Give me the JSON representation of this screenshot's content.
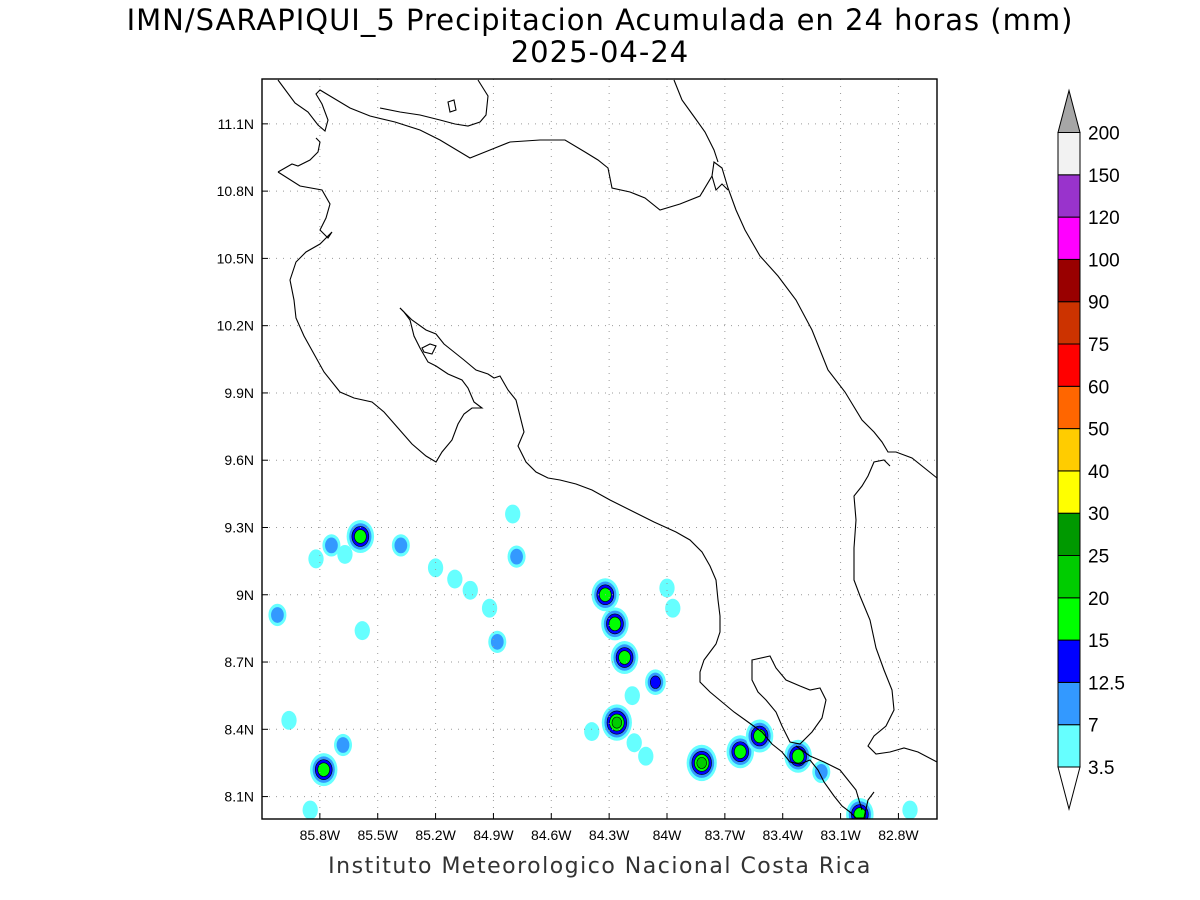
{
  "header": {
    "title_line1": "IMN/SARAPIQUI_5 Precipitacion Acumulada en 24 horas (mm)",
    "title_line2": "2025-04-24"
  },
  "footer": {
    "credit": "Instituto Meteorologico Nacional Costa Rica"
  },
  "map": {
    "lon_range": [
      -86.1,
      -82.6
    ],
    "lat_range": [
      8.0,
      11.3
    ],
    "x_ticks": [
      {
        "lon": -85.8,
        "label": "85.8W"
      },
      {
        "lon": -85.5,
        "label": "85.5W"
      },
      {
        "lon": -85.2,
        "label": "85.2W"
      },
      {
        "lon": -84.9,
        "label": "84.9W"
      },
      {
        "lon": -84.6,
        "label": "84.6W"
      },
      {
        "lon": -84.3,
        "label": "84.3W"
      },
      {
        "lon": -84.0,
        "label": "84W"
      },
      {
        "lon": -83.7,
        "label": "83.7W"
      },
      {
        "lon": -83.4,
        "label": "83.4W"
      },
      {
        "lon": -83.1,
        "label": "83.1W"
      },
      {
        "lon": -82.8,
        "label": "82.8W"
      }
    ],
    "y_ticks": [
      {
        "lat": 8.1,
        "label": "8.1N"
      },
      {
        "lat": 8.4,
        "label": "8.4N"
      },
      {
        "lat": 8.7,
        "label": "8.7N"
      },
      {
        "lat": 9.0,
        "label": "9N"
      },
      {
        "lat": 9.3,
        "label": "9.3N"
      },
      {
        "lat": 9.6,
        "label": "9.6N"
      },
      {
        "lat": 9.9,
        "label": "9.9N"
      },
      {
        "lat": 10.2,
        "label": "10.2N"
      },
      {
        "lat": 10.5,
        "label": "10.5N"
      },
      {
        "lat": 10.8,
        "label": "10.8N"
      },
      {
        "lat": 11.1,
        "label": "11.1N"
      }
    ],
    "grid": true,
    "coastline_color": "#000000",
    "precip_cells": [
      {
        "lon": -85.59,
        "lat": 9.26,
        "level": 4
      },
      {
        "lon": -85.74,
        "lat": 9.22,
        "level": 2
      },
      {
        "lon": -85.67,
        "lat": 9.18,
        "level": 1
      },
      {
        "lon": -85.82,
        "lat": 9.16,
        "level": 1
      },
      {
        "lon": -85.38,
        "lat": 9.22,
        "level": 2
      },
      {
        "lon": -85.2,
        "lat": 9.12,
        "level": 1
      },
      {
        "lon": -85.1,
        "lat": 9.07,
        "level": 1
      },
      {
        "lon": -85.02,
        "lat": 9.02,
        "level": 1
      },
      {
        "lon": -84.92,
        "lat": 8.94,
        "level": 1
      },
      {
        "lon": -84.8,
        "lat": 9.36,
        "level": 1
      },
      {
        "lon": -84.78,
        "lat": 9.17,
        "level": 2
      },
      {
        "lon": -84.88,
        "lat": 8.79,
        "level": 2
      },
      {
        "lon": -85.58,
        "lat": 8.84,
        "level": 1
      },
      {
        "lon": -86.02,
        "lat": 8.91,
        "level": 2
      },
      {
        "lon": -85.96,
        "lat": 8.44,
        "level": 1
      },
      {
        "lon": -85.68,
        "lat": 8.33,
        "level": 2
      },
      {
        "lon": -85.78,
        "lat": 8.22,
        "level": 4
      },
      {
        "lon": -85.85,
        "lat": 8.04,
        "level": 1
      },
      {
        "lon": -84.32,
        "lat": 9.0,
        "level": 4
      },
      {
        "lon": -84.27,
        "lat": 8.87,
        "level": 4
      },
      {
        "lon": -84.22,
        "lat": 8.72,
        "level": 4
      },
      {
        "lon": -84.06,
        "lat": 8.61,
        "level": 3
      },
      {
        "lon": -84.18,
        "lat": 8.55,
        "level": 1
      },
      {
        "lon": -84.26,
        "lat": 8.43,
        "level": 5
      },
      {
        "lon": -84.39,
        "lat": 8.39,
        "level": 1
      },
      {
        "lon": -84.17,
        "lat": 8.34,
        "level": 1
      },
      {
        "lon": -84.11,
        "lat": 8.28,
        "level": 1
      },
      {
        "lon": -84.0,
        "lat": 9.03,
        "level": 1
      },
      {
        "lon": -83.97,
        "lat": 8.94,
        "level": 1
      },
      {
        "lon": -83.82,
        "lat": 8.25,
        "level": 5
      },
      {
        "lon": -83.62,
        "lat": 8.3,
        "level": 4
      },
      {
        "lon": -83.52,
        "lat": 8.37,
        "level": 4
      },
      {
        "lon": -83.32,
        "lat": 8.28,
        "level": 4
      },
      {
        "lon": -83.2,
        "lat": 8.21,
        "level": 2
      },
      {
        "lon": -83.0,
        "lat": 8.02,
        "level": 4
      },
      {
        "lon": -82.74,
        "lat": 8.04,
        "level": 1
      }
    ]
  },
  "colorbar": {
    "labels": [
      "3.5",
      "7",
      "12.5",
      "15",
      "20",
      "25",
      "30",
      "40",
      "50",
      "60",
      "75",
      "90",
      "100",
      "120",
      "150",
      "200"
    ],
    "colors": [
      "#66ffff",
      "#3399ff",
      "#0000ff",
      "#00ff00",
      "#00cc00",
      "#009900",
      "#ffff00",
      "#ffcc00",
      "#ff6600",
      "#ff0000",
      "#cc3300",
      "#990000",
      "#ff00ff",
      "#9933cc",
      "#f2f2f2"
    ],
    "under_color": "#ffffff",
    "over_color": "#a6a6a6"
  }
}
